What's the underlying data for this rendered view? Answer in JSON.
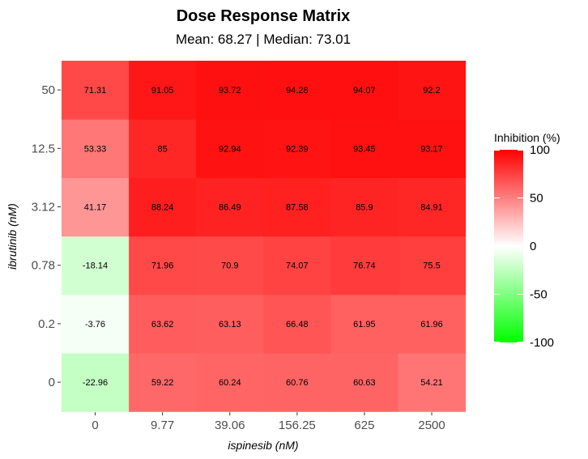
{
  "chart_data": {
    "type": "heatmap",
    "title": "Dose Response Matrix",
    "subtitle": "Mean: 68.27 | Median: 73.01",
    "xlabel": "ispinesib (nM)",
    "ylabel": "ibrutinib (nM)",
    "x_categories": [
      "0",
      "9.77",
      "39.06",
      "156.25",
      "625",
      "2500"
    ],
    "y_categories": [
      "0",
      "0.2",
      "0.78",
      "3.12",
      "12.5",
      "50"
    ],
    "values": [
      [
        -22.96,
        59.22,
        60.24,
        60.76,
        60.63,
        54.21
      ],
      [
        -3.76,
        63.62,
        63.13,
        66.48,
        61.95,
        61.96
      ],
      [
        -18.14,
        71.96,
        70.9,
        74.07,
        76.74,
        75.5
      ],
      [
        41.17,
        88.24,
        86.49,
        87.58,
        85.9,
        84.91
      ],
      [
        53.33,
        85,
        92.94,
        92.39,
        93.45,
        93.17
      ],
      [
        71.31,
        91.05,
        93.72,
        94.28,
        94.07,
        92.2
      ]
    ],
    "legend": {
      "title": "Inhibition (%)",
      "ticks": [
        "100",
        "50",
        "0",
        "-50",
        "-100"
      ],
      "placement": "right"
    },
    "color_scale": {
      "low": "#00ff00",
      "mid": "#ffffff",
      "high": "#ff0000",
      "min": -100,
      "max": 100
    },
    "grid": false
  }
}
